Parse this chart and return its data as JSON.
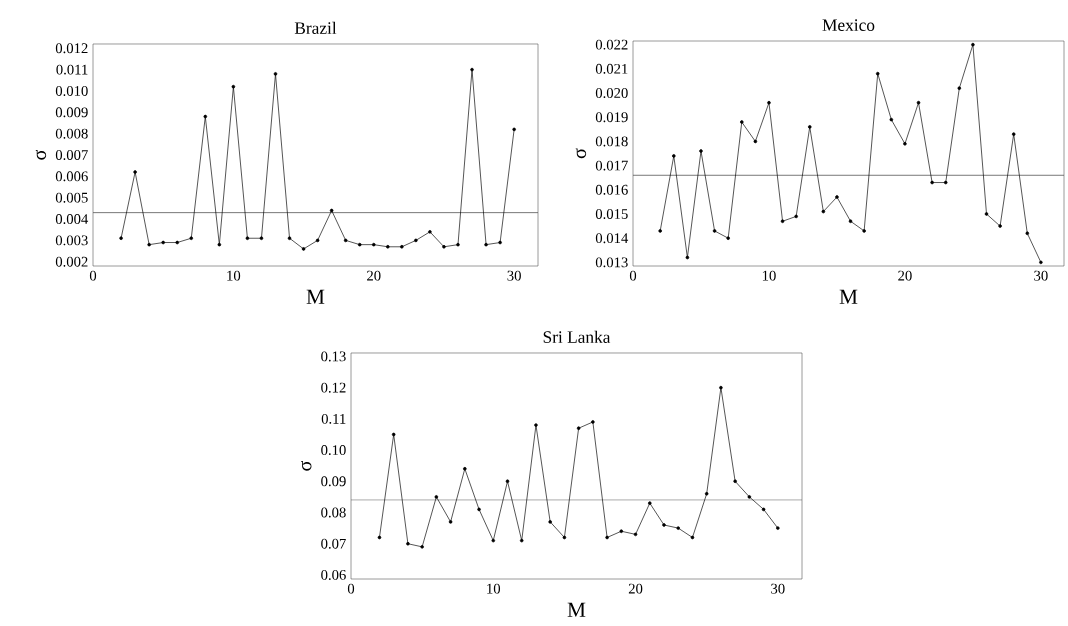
{
  "chart_data": [
    {
      "type": "line",
      "title": "Brazil",
      "xlabel": "M",
      "ylabel": "σ",
      "color": "#000000",
      "marker": "circle",
      "x": [
        2,
        3,
        4,
        5,
        6,
        7,
        8,
        9,
        10,
        11,
        12,
        13,
        14,
        15,
        16,
        17,
        18,
        19,
        20,
        21,
        22,
        23,
        24,
        25,
        26,
        27,
        28,
        29,
        30
      ],
      "values": [
        0.0031,
        0.0062,
        0.0028,
        0.0029,
        0.0029,
        0.0031,
        0.0088,
        0.0028,
        0.0102,
        0.0031,
        0.0031,
        0.0108,
        0.0031,
        0.0026,
        0.003,
        0.0044,
        0.003,
        0.0028,
        0.0028,
        0.0027,
        0.0027,
        0.003,
        0.0034,
        0.0027,
        0.0028,
        0.011,
        0.0028,
        0.0029,
        0.0082
      ],
      "xlim": [
        0,
        31.7
      ],
      "ylim": [
        0.0018,
        0.0122
      ],
      "xticks": [
        0,
        10,
        20,
        30
      ],
      "yticks": [
        0.002,
        0.003,
        0.004,
        0.005,
        0.006,
        0.007,
        0.008,
        0.009,
        {
          "value": 0.01,
          "label": "0.010"
        },
        0.011,
        0.012
      ],
      "ref_lines": [
        {
          "axis": "y",
          "value": 0.0043,
          "color": "#555555"
        }
      ]
    },
    {
      "type": "line",
      "title": "Mexico",
      "xlabel": "M",
      "ylabel": "σ",
      "color": "#000000",
      "marker": "circle",
      "x": [
        2,
        3,
        4,
        5,
        6,
        7,
        8,
        9,
        10,
        11,
        12,
        13,
        14,
        15,
        16,
        17,
        18,
        19,
        20,
        21,
        22,
        23,
        24,
        25,
        26,
        27,
        28,
        29,
        30
      ],
      "values": [
        0.0143,
        0.0174,
        0.0132,
        0.0176,
        0.0143,
        0.014,
        0.0188,
        0.018,
        0.0196,
        0.0147,
        0.0149,
        0.0186,
        0.0151,
        0.0157,
        0.0147,
        0.0143,
        0.0208,
        0.0189,
        0.0179,
        0.0196,
        0.0163,
        0.0163,
        0.0202,
        0.022,
        0.015,
        0.0145,
        0.0183,
        0.0142,
        0.013
      ],
      "xlim": [
        0,
        31.7
      ],
      "ylim": [
        0.01285,
        0.02215
      ],
      "xticks": [
        0,
        10,
        20,
        30
      ],
      "yticks": [
        0.013,
        0.014,
        0.015,
        0.016,
        0.017,
        0.018,
        0.019,
        {
          "value": 0.02,
          "label": "0.020"
        },
        0.021,
        0.022
      ],
      "ref_lines": [
        {
          "axis": "y",
          "value": 0.0166,
          "color": "#555555"
        }
      ]
    },
    {
      "type": "line",
      "title": "Sri Lanka",
      "xlabel": "M",
      "ylabel": "σ",
      "color": "#000000",
      "marker": "circle",
      "x": [
        2,
        3,
        4,
        5,
        6,
        7,
        8,
        9,
        10,
        11,
        12,
        13,
        14,
        15,
        16,
        17,
        18,
        19,
        20,
        21,
        22,
        23,
        24,
        25,
        26,
        27,
        28,
        29,
        30
      ],
      "values": [
        0.072,
        0.105,
        0.07,
        0.069,
        0.085,
        0.077,
        0.094,
        0.081,
        0.071,
        0.09,
        0.071,
        0.108,
        0.077,
        0.072,
        0.107,
        0.109,
        0.072,
        0.074,
        0.073,
        0.083,
        0.076,
        0.075,
        0.072,
        0.086,
        0.12,
        0.09,
        0.085,
        0.081,
        0.075
      ],
      "xlim": [
        0,
        31.7
      ],
      "ylim": [
        0.0587,
        0.1311
      ],
      "xticks": [
        0,
        10,
        20,
        30
      ],
      "yticks": [
        0.06,
        0.07,
        0.08,
        0.09,
        {
          "value": 0.1,
          "label": "0.10"
        },
        0.11,
        0.12,
        0.13
      ],
      "ref_lines": [
        {
          "axis": "y",
          "value": 0.084,
          "color": "#555555"
        }
      ]
    }
  ]
}
